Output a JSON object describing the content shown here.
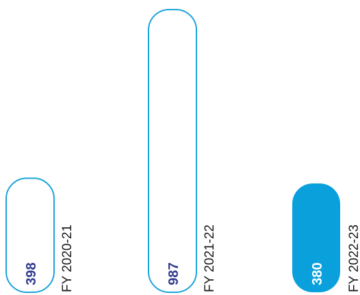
{
  "chart_data": {
    "type": "bar",
    "orientation": "vertical",
    "categories": [
      "FY 2020-21",
      "FY 2021-22",
      "FY 2022-23"
    ],
    "values": [
      398,
      987,
      380
    ],
    "value_labels": [
      "398",
      "987",
      "380"
    ],
    "series": [
      {
        "values": [
          398,
          987,
          380
        ]
      }
    ],
    "bar_styles": [
      "outline",
      "outline",
      "filled"
    ],
    "colors": {
      "outline": "#1aa3dc",
      "filled": "#0aa0dc",
      "value_text_outline": "#2f3b8f",
      "value_text_filled": "#ffffff",
      "category_text": "#1a1a1a"
    },
    "grid": false,
    "legend": "none"
  }
}
